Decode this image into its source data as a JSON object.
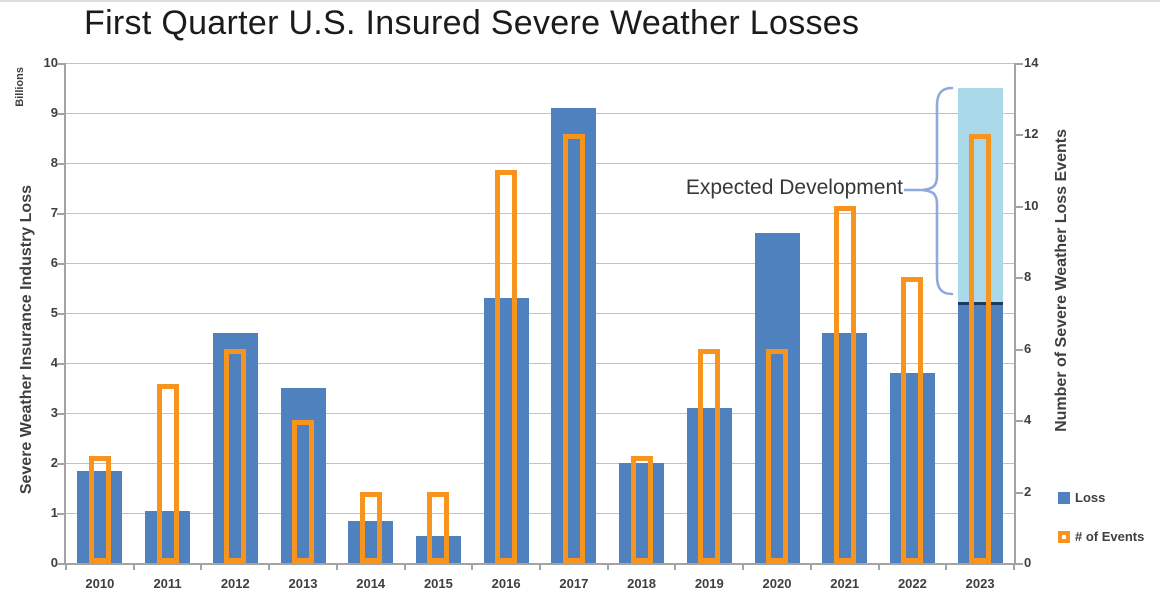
{
  "title": "First Quarter U.S. Insured Severe Weather Losses",
  "left_axis": {
    "units_label": "Billions",
    "title": "Severe Weather Insurance Industry Loss",
    "tick_values": [
      0,
      1,
      2,
      3,
      4,
      5,
      6,
      7,
      8,
      9,
      10
    ]
  },
  "right_axis": {
    "title": "Number of Severe Weather Loss Events",
    "tick_values": [
      0,
      2,
      4,
      6,
      8,
      10,
      12,
      14
    ]
  },
  "annotation": {
    "label": "Expected Development"
  },
  "legend": {
    "items": [
      {
        "label": "Loss",
        "marker": "filled-square"
      },
      {
        "label": "# of Events",
        "marker": "outlined-square"
      }
    ]
  },
  "chart_data": {
    "type": "bar",
    "title": "First Quarter U.S. Insured Severe Weather Losses",
    "categories": [
      "2010",
      "2011",
      "2012",
      "2013",
      "2014",
      "2015",
      "2016",
      "2017",
      "2018",
      "2019",
      "2020",
      "2021",
      "2022",
      "2023"
    ],
    "series": [
      {
        "name": "Loss",
        "axis": "left",
        "unit": "billions USD",
        "values": [
          1.85,
          1.05,
          4.6,
          3.5,
          0.85,
          0.55,
          5.3,
          9.1,
          2.0,
          3.1,
          6.6,
          4.6,
          3.8,
          5.2
        ]
      },
      {
        "name": "# of Events",
        "axis": "right",
        "unit": "events",
        "values": [
          3,
          5,
          6,
          4,
          2,
          2,
          11,
          12,
          3,
          6,
          6,
          10,
          8,
          12
        ]
      }
    ],
    "expected_development": {
      "category": "2023",
      "from": 5.2,
      "to": 9.5,
      "label": "Expected Development"
    },
    "left_ylabel": "Severe Weather Insurance Industry Loss",
    "left_units": "Billions",
    "right_ylabel": "Number of Severe Weather Loss Events",
    "left_ylim": [
      0,
      10
    ],
    "right_ylim": [
      0,
      14
    ],
    "grid": "horizontal",
    "legend_position": "bottom-right"
  },
  "colors": {
    "loss_bar": "#4e81bd",
    "events_outline": "#f7941e",
    "expected_fill": "#a9d9e8",
    "expected_divider": "#1e3a5f",
    "brace": "#8fa9dc",
    "grid": "#c2c2c2",
    "axis_line": "#a3a3a3",
    "text_dark": "#3f3f3f",
    "title_text": "#1b1b1b"
  }
}
